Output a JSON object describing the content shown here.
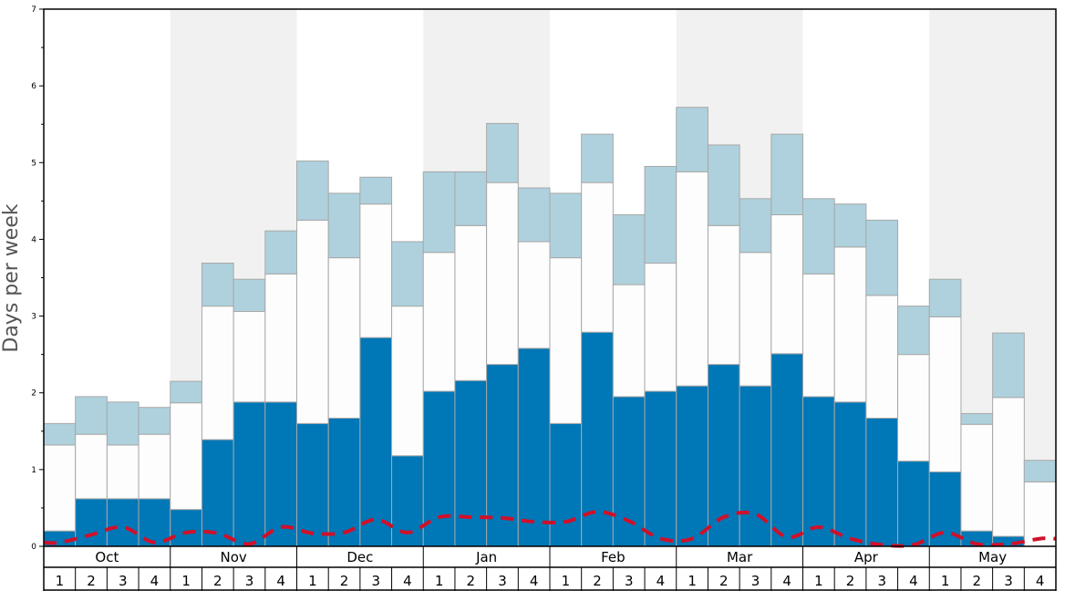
{
  "chart_data": {
    "type": "bar",
    "stacked": true,
    "ylabel": "Days per week",
    "ylim": [
      0,
      7
    ],
    "yticks": [
      0,
      1,
      2,
      3,
      4,
      5,
      6,
      7
    ],
    "months": [
      "Oct",
      "Nov",
      "Dec",
      "Jan",
      "Feb",
      "Mar",
      "Apr",
      "May"
    ],
    "week_labels": [
      "1",
      "2",
      "3",
      "4"
    ],
    "series": [
      {
        "key": "dark",
        "values": [
          0.2,
          0.62,
          0.62,
          0.62,
          0.48,
          1.39,
          1.88,
          1.88,
          1.6,
          1.67,
          2.72,
          1.18,
          2.02,
          2.16,
          2.37,
          2.58,
          1.6,
          2.79,
          1.95,
          2.02,
          2.09,
          2.37,
          2.09,
          2.51,
          1.95,
          1.88,
          1.67,
          1.11,
          0.97,
          0.2,
          0.13,
          0.0
        ]
      },
      {
        "key": "white",
        "values": [
          1.12,
          0.84,
          0.7,
          0.84,
          1.39,
          1.74,
          1.18,
          1.67,
          2.65,
          2.09,
          1.74,
          1.95,
          1.81,
          2.02,
          2.37,
          1.39,
          2.16,
          1.95,
          1.46,
          1.67,
          2.79,
          1.81,
          1.74,
          1.81,
          1.6,
          2.02,
          1.6,
          1.39,
          2.02,
          1.39,
          1.81,
          0.84
        ]
      },
      {
        "key": "light",
        "values": [
          0.28,
          0.49,
          0.56,
          0.35,
          0.28,
          0.56,
          0.42,
          0.56,
          0.77,
          0.84,
          0.35,
          0.84,
          1.05,
          0.7,
          0.77,
          0.7,
          0.84,
          0.63,
          0.91,
          1.26,
          0.84,
          1.05,
          0.7,
          1.05,
          0.98,
          0.56,
          0.98,
          0.63,
          0.49,
          0.14,
          0.84,
          0.28
        ]
      }
    ],
    "dashed_line": {
      "values": [
        0.05,
        0.15,
        0.25,
        0.05,
        0.18,
        0.17,
        0.03,
        0.25,
        0.17,
        0.18,
        0.35,
        0.18,
        0.38,
        0.38,
        0.37,
        0.32,
        0.32,
        0.45,
        0.33,
        0.1,
        0.1,
        0.38,
        0.42,
        0.12,
        0.25,
        0.1,
        0.02,
        0.02,
        0.18,
        0.03,
        0.03,
        0.1
      ]
    },
    "colors": {
      "dark": "#0077b6",
      "white": "#fdfdfd",
      "light": "#aed1dd",
      "bar_border": "#a8a8a8",
      "line": "#d0102a",
      "alt_band": "#f1f1f1",
      "frame": "#000000"
    }
  }
}
